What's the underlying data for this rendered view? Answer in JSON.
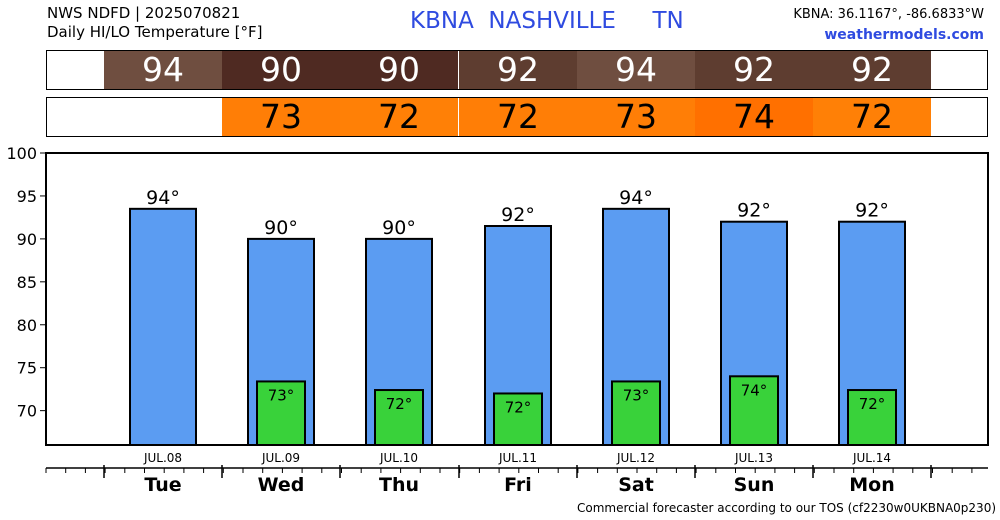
{
  "header": {
    "line1": "NWS NDFD | 2025070821",
    "line2": "Daily HI/LO Temperature [°F]",
    "station_title": "KBNA  NASHVILLE     TN",
    "coords": "KBNA: 36.1167°, -86.6833°W",
    "website": "weathermodels.com"
  },
  "footer": "Commercial forecaster according to our TOS (cf2230w0UKBNA0p230)",
  "colors": {
    "hi_bar": "#5b9cf2",
    "lo_bar": "#39d23a",
    "hi_strip": [
      "#6f4e40",
      "#4f2a22",
      "#4f2a22",
      "#5e3d30",
      "#6f4e40",
      "#5e3d30",
      "#5e3d30"
    ],
    "lo_strip": [
      "#ff7e06",
      "#ff8006",
      "#ff7e06",
      "#ff7e06",
      "#ff7000",
      "#ff8006"
    ]
  },
  "chart_data": {
    "type": "bar",
    "ylim": [
      66,
      100
    ],
    "yticks": [
      70,
      75,
      80,
      85,
      90,
      95,
      100
    ],
    "days": [
      "Tue",
      "Wed",
      "Thu",
      "Fri",
      "Sat",
      "Sun",
      "Mon"
    ],
    "dates": [
      "JUL.08",
      "JUL.09",
      "JUL.10",
      "JUL.11",
      "JUL.12",
      "JUL.13",
      "JUL.14"
    ],
    "series": [
      {
        "name": "HI",
        "values": [
          93.5,
          90,
          90,
          91.5,
          93.5,
          92,
          92
        ],
        "labels": [
          "94°",
          "90°",
          "90°",
          "92°",
          "94°",
          "92°",
          "92°"
        ]
      },
      {
        "name": "LO",
        "values": [
          null,
          73.4,
          72.4,
          72,
          73.4,
          74,
          72.4
        ],
        "labels": [
          "",
          "73°",
          "72°",
          "72°",
          "73°",
          "74°",
          "72°"
        ]
      }
    ]
  },
  "strips": {
    "hi": [
      "94",
      "90",
      "90",
      "92",
      "94",
      "92",
      "92"
    ],
    "lo": [
      "",
      "73",
      "72",
      "72",
      "73",
      "74",
      "72"
    ]
  }
}
